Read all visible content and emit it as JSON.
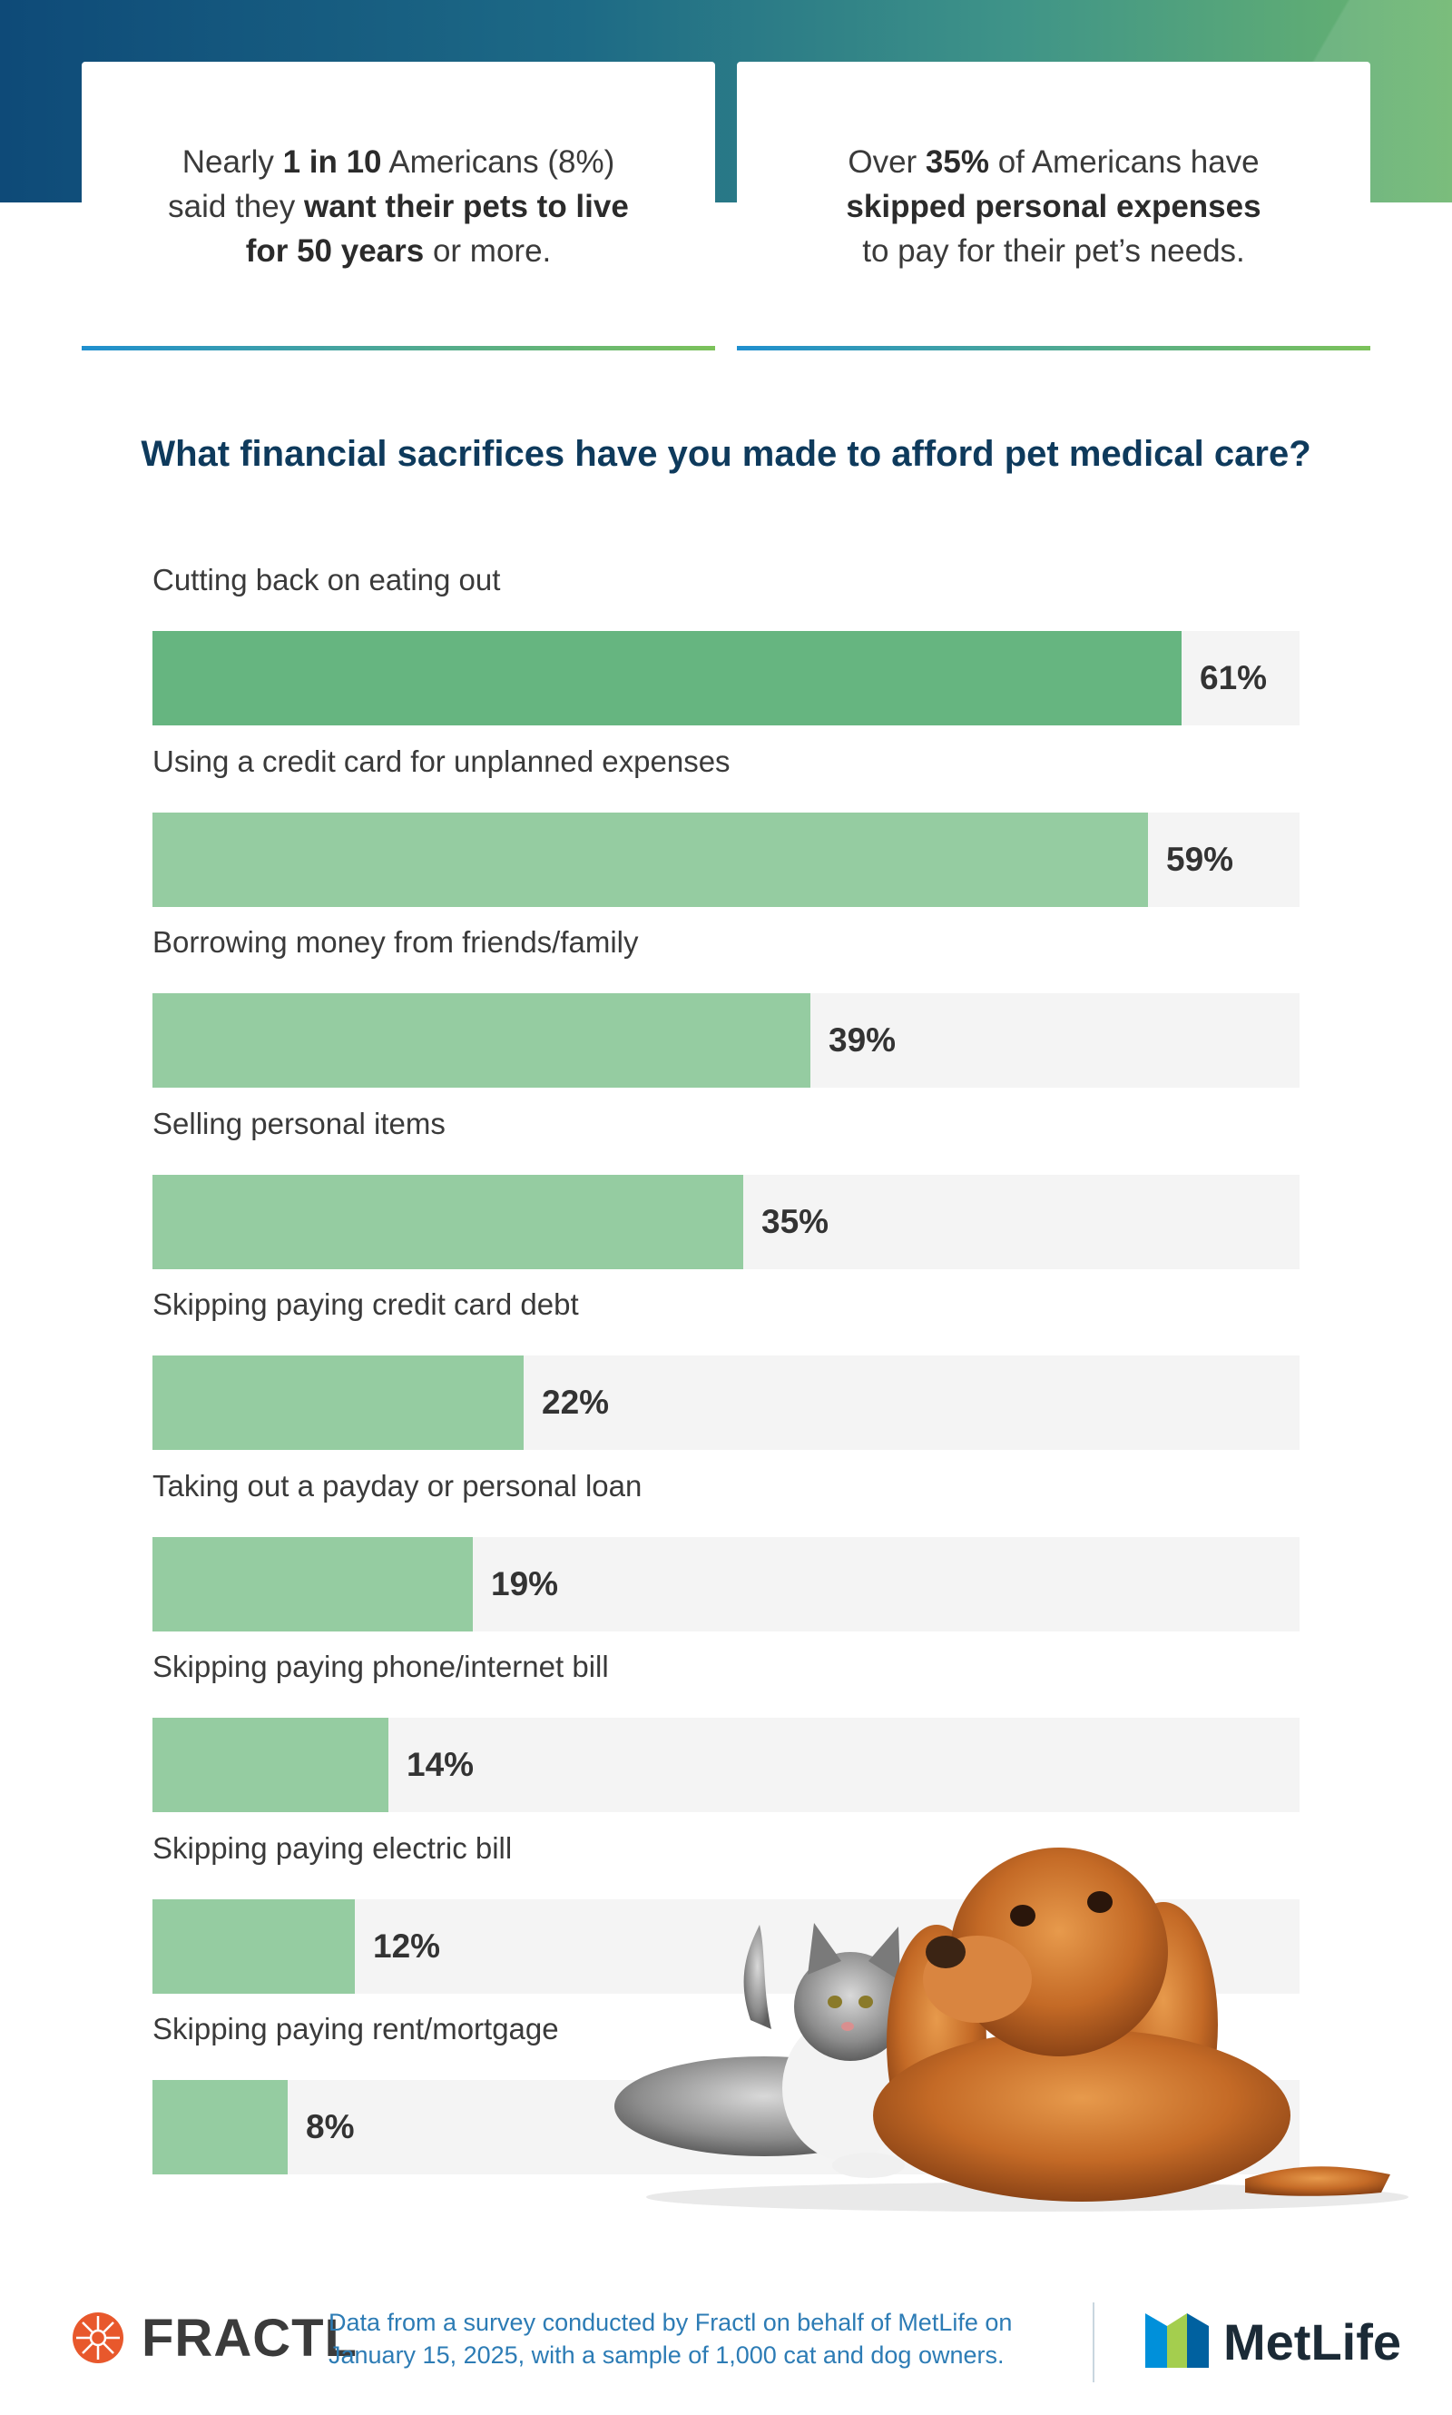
{
  "stats": {
    "left": {
      "p1": "Nearly ",
      "b1": "1 in 10",
      "p2": " Americans (8%)",
      "p3": "said they ",
      "b2": "want their pets to live",
      "b3": "for 50 years",
      "p4": " or more."
    },
    "right": {
      "p1": "Over ",
      "b1": "35%",
      "p2": " of Americans have",
      "b2": "skipped personal expenses",
      "p3": "to pay for their pet’s needs."
    }
  },
  "chart_data": {
    "type": "bar",
    "orientation": "horizontal",
    "title": "What financial sacrifices have you made to afford pet medical care?",
    "categories": [
      "Cutting back on eating out",
      "Using a credit card for unplanned expenses",
      "Borrowing money from friends/family",
      "Selling personal items",
      "Skipping paying credit card debt",
      "Taking out a payday or personal loan",
      "Skipping paying phone/internet bill",
      "Skipping paying electric bill",
      "Skipping paying rent/mortgage"
    ],
    "values": [
      61,
      59,
      39,
      35,
      22,
      19,
      14,
      12,
      8
    ],
    "value_labels": [
      "61%",
      "59%",
      "39%",
      "35%",
      "22%",
      "19%",
      "14%",
      "12%",
      "8%"
    ],
    "unit": "%",
    "xlim": [
      0,
      68
    ],
    "highlight_color": "#66b580",
    "bar_color": "#95cca1",
    "track_color": "#f4f4f4"
  },
  "footer": {
    "fractl_brand": "FRACTL",
    "note_line1": "Data from a survey conducted by Fractl on behalf of MetLife on",
    "note_line2": "January 15, 2025, with a sample of 1,000 cat and dog owners.",
    "metlife_brand": "MetLife"
  },
  "colors": {
    "title": "#0e3a5c",
    "footnote": "#2d7cb5",
    "banner_start": "#0e4a78",
    "banner_end": "#6cb66d"
  },
  "illustration": {
    "icon": "cat-and-dog-photo"
  }
}
